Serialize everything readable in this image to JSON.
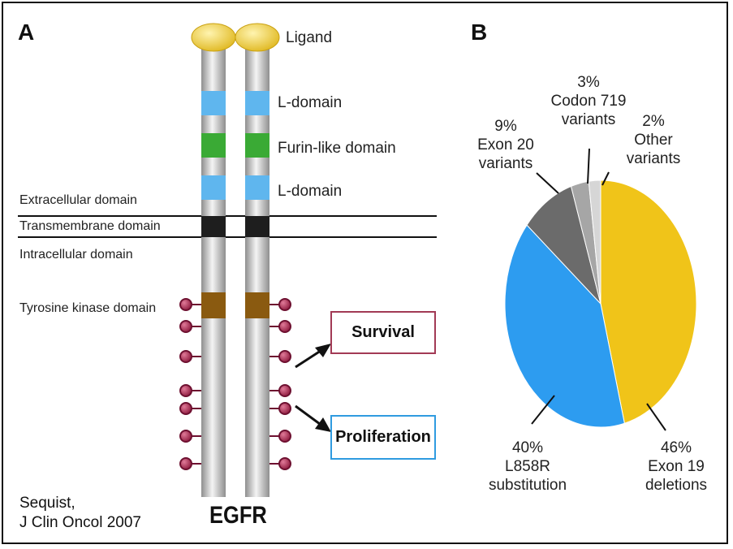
{
  "panel_a": {
    "letter": "A",
    "labels": {
      "ligand": "Ligand",
      "l_domain_top": "L-domain",
      "furin": "Furin-like domain",
      "l_domain_bottom": "L-domain",
      "extracellular": "Extracellular domain",
      "transmembrane": "Transmembrane domain",
      "intracellular": "Intracellular domain",
      "tyrosine_kinase": "Tyrosine kinase domain"
    },
    "outcomes": {
      "survival": "Survival",
      "proliferation": "Proliferation"
    },
    "protein_name": "EGFR",
    "colors": {
      "ligand": "#f2cf3a",
      "l_domain": "#5fb6ee",
      "furin": "#3aaa35",
      "transmembrane": "#1e1e1e",
      "kinase": "#8a5a10",
      "phospho": "#a8224a",
      "survival_border": "#a23a55",
      "proliferation_border": "#2f9be0"
    }
  },
  "citation": {
    "line1": "Sequist,",
    "line2": "J Clin Oncol 2007"
  },
  "panel_b": {
    "letter": "B"
  },
  "chart_data": {
    "type": "pie",
    "slices": [
      {
        "pct_label": "46%",
        "name_lines": [
          "Exon 19",
          "deletions"
        ],
        "value": 46,
        "color": "#f0c419"
      },
      {
        "pct_label": "40%",
        "name_lines": [
          "L858R",
          "substitution"
        ],
        "value": 40,
        "color": "#2d9cf0"
      },
      {
        "pct_label": "9%",
        "name_lines": [
          "Exon 20",
          "variants"
        ],
        "value": 9,
        "color": "#6b6b6b"
      },
      {
        "pct_label": "3%",
        "name_lines": [
          "Codon 719",
          "variants"
        ],
        "value": 3,
        "color": "#a6a6a6"
      },
      {
        "pct_label": "2%",
        "name_lines": [
          "Other",
          "variants"
        ],
        "value": 2,
        "color": "#d6d6d6"
      }
    ]
  }
}
